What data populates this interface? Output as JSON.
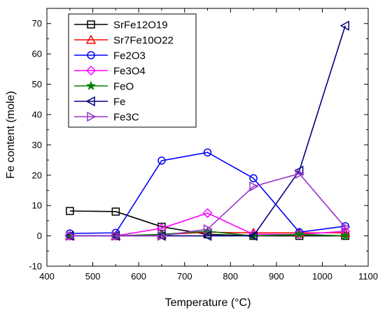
{
  "chart_data": {
    "type": "line",
    "title": "",
    "xlabel": "Temperature (°C)",
    "ylabel": "Fe content (mole)",
    "xlim": [
      400,
      1100
    ],
    "ylim": [
      -10,
      75
    ],
    "xticks": [
      400,
      500,
      600,
      700,
      800,
      900,
      1000,
      1100
    ],
    "yticks": [
      -10,
      0,
      10,
      20,
      30,
      40,
      50,
      60,
      70
    ],
    "grid": false,
    "legend_position": "top-left",
    "x": [
      450,
      550,
      650,
      750,
      850,
      950,
      1050
    ],
    "series": [
      {
        "name": "SrFe12O19",
        "color": "#000000",
        "marker": "square",
        "values": [
          8.2,
          8.0,
          3.0,
          0.5,
          0.0,
          0.0,
          0.0
        ]
      },
      {
        "name": "Sr7Fe10O22",
        "color": "#ff0000",
        "marker": "triangle-up",
        "values": [
          0.0,
          0.0,
          0.4,
          1.2,
          1.0,
          1.0,
          1.0
        ]
      },
      {
        "name": "Fe2O3",
        "color": "#0000ff",
        "marker": "circle",
        "values": [
          0.8,
          1.0,
          24.8,
          27.5,
          19.0,
          1.2,
          3.2
        ]
      },
      {
        "name": "Fe3O4",
        "color": "#ff00ff",
        "marker": "diamond",
        "values": [
          0.0,
          0.0,
          2.5,
          7.5,
          0.5,
          0.5,
          1.5
        ]
      },
      {
        "name": "FeO",
        "color": "#008000",
        "marker": "star",
        "values": [
          0.0,
          0.0,
          0.5,
          1.5,
          0.0,
          0.5,
          0.0
        ]
      },
      {
        "name": "Fe",
        "color": "#000080",
        "marker": "triangle-left",
        "values": [
          0.0,
          0.0,
          0.0,
          0.0,
          0.0,
          21.5,
          69.3
        ]
      },
      {
        "name": "Fe3C",
        "color": "#9932cc",
        "marker": "triangle-right",
        "values": [
          0.0,
          0.0,
          0.0,
          2.2,
          16.3,
          20.5,
          2.8
        ]
      }
    ]
  }
}
